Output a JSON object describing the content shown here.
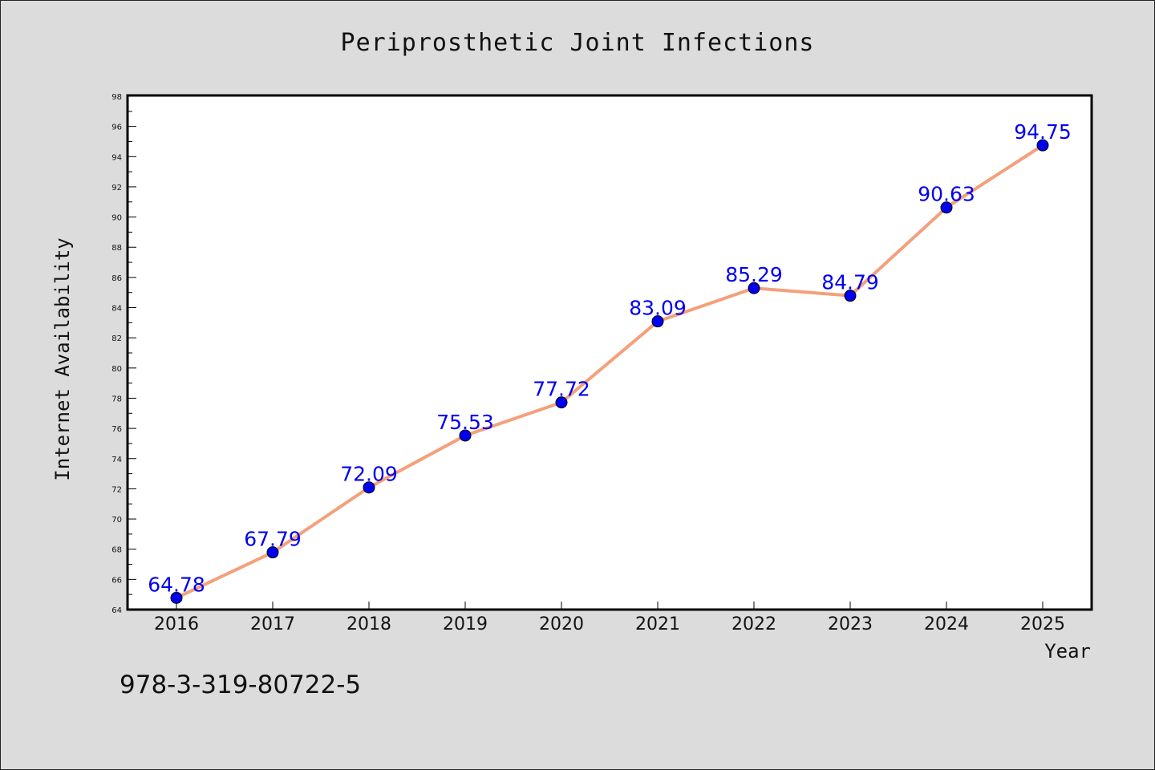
{
  "chart_data": {
    "type": "line",
    "title": "Periprosthetic Joint Infections",
    "xlabel": "Year",
    "ylabel": "Internet Availability",
    "categories": [
      "2016",
      "2017",
      "2018",
      "2019",
      "2020",
      "2021",
      "2022",
      "2023",
      "2024",
      "2025"
    ],
    "series": [
      {
        "values": [
          64.78,
          67.79,
          72.09,
          75.53,
          77.72,
          83.09,
          85.29,
          84.79,
          90.63,
          94.75
        ],
        "data_labels": [
          "64.78",
          "67.79",
          "72.09",
          "75.53",
          "77.72",
          "83.09",
          "85.29",
          "84.79",
          "90.63",
          "94.75"
        ]
      }
    ],
    "ylim": [
      64,
      98
    ],
    "yticks": [
      "64",
      "66",
      "68",
      "70",
      "72",
      "74",
      "76",
      "78",
      "80",
      "82",
      "84",
      "86",
      "88",
      "90",
      "92",
      "94",
      "96",
      "98"
    ],
    "grid": false,
    "legend": "none",
    "colors": {
      "line": "#f4a07c",
      "marker": "#0000ee",
      "data_label": "#0000ee",
      "plot_background": "#ffffff",
      "page_background": "#dcdcdc"
    }
  },
  "footer": {
    "text": "978-3-319-80722-5"
  }
}
